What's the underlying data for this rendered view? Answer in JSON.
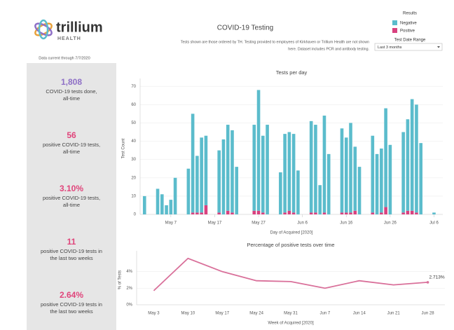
{
  "header": {
    "logo_name": "trillium",
    "logo_sub": "HEALTH",
    "data_current": "Data current through 7/7/2020",
    "title": "COVID-19 Testing",
    "subtitle_lines": [
      "Tests shown are those ordered by TH. Testing provided to employees of Kirkhaven or Trillium Health are not shown",
      "here. Dataset includes PCR and antibody testing."
    ],
    "legend_title": "Results",
    "filter_label": "Test Date Range",
    "filter_value": "Last 3 months"
  },
  "kpis": [
    {
      "value": "1,808",
      "label_lines": [
        "COVID-19 tests done,",
        "all-time"
      ],
      "color": "#8e6fc6"
    },
    {
      "value": "56",
      "label_lines": [
        "positive COVID-19 tests,",
        "all-time"
      ],
      "color": "#e0457b"
    },
    {
      "value": "3.10%",
      "label_lines": [
        "positive COVID-19 tests,",
        "all-time"
      ],
      "color": "#e0457b"
    },
    {
      "value": "11",
      "label_lines": [
        "positive COVID-19 tests in",
        "the last two weeks"
      ],
      "color": "#e0457b"
    },
    {
      "value": "2.64%",
      "label_lines": [
        "positive COVID-19 tests in",
        "the last two weeks"
      ],
      "color": "#e0457b"
    }
  ],
  "chart_data": [
    {
      "type": "stacked_bar",
      "title": "Tests per day",
      "y_label": "Test Count",
      "x_label": "Day of Acquired [2020]",
      "x": [
        "2020-05-01",
        "2020-05-04",
        "2020-05-05",
        "2020-05-06",
        "2020-05-07",
        "2020-05-08",
        "2020-05-11",
        "2020-05-12",
        "2020-05-13",
        "2020-05-14",
        "2020-05-15",
        "2020-05-18",
        "2020-05-19",
        "2020-05-20",
        "2020-05-21",
        "2020-05-22",
        "2020-05-26",
        "2020-05-27",
        "2020-05-28",
        "2020-05-29",
        "2020-06-01",
        "2020-06-02",
        "2020-06-03",
        "2020-06-04",
        "2020-06-05",
        "2020-06-08",
        "2020-06-09",
        "2020-06-10",
        "2020-06-11",
        "2020-06-12",
        "2020-06-15",
        "2020-06-16",
        "2020-06-17",
        "2020-06-18",
        "2020-06-19",
        "2020-06-22",
        "2020-06-23",
        "2020-06-24",
        "2020-06-25",
        "2020-06-26",
        "2020-06-29",
        "2020-06-30",
        "2020-07-01",
        "2020-07-02",
        "2020-07-03",
        "2020-07-06"
      ],
      "series": [
        {
          "name": "Negative",
          "color": "#5bbccc",
          "values": [
            10,
            14,
            11,
            5,
            8,
            20,
            25,
            54,
            31,
            41,
            38,
            34,
            41,
            47,
            45,
            26,
            47,
            66,
            42,
            49,
            23,
            43,
            43,
            43,
            24,
            50,
            48,
            16,
            53,
            33,
            46,
            41,
            49,
            35,
            26,
            42,
            33,
            35,
            54,
            38,
            44,
            50,
            61,
            59,
            39,
            1
          ]
        },
        {
          "name": "Positive",
          "color": "#d9417f",
          "values": [
            0,
            0,
            0,
            0,
            0,
            0,
            0,
            1,
            1,
            1,
            5,
            1,
            0,
            2,
            1,
            0,
            2,
            2,
            1,
            0,
            0,
            1,
            2,
            1,
            0,
            1,
            1,
            0,
            1,
            0,
            1,
            1,
            1,
            2,
            0,
            1,
            0,
            1,
            4,
            0,
            1,
            2,
            2,
            1,
            0,
            0
          ]
        }
      ],
      "xlim": [
        "2020-04-30",
        "2020-07-08"
      ],
      "xticks": [
        {
          "value": "2020-05-07",
          "label": "May 7"
        },
        {
          "value": "2020-05-17",
          "label": "May 17"
        },
        {
          "value": "2020-05-27",
          "label": "May 27"
        },
        {
          "value": "2020-06-06",
          "label": "Jun 6"
        },
        {
          "value": "2020-06-16",
          "label": "Jun 16"
        },
        {
          "value": "2020-06-26",
          "label": "Jun 26"
        },
        {
          "value": "2020-07-06",
          "label": "Jul 6"
        }
      ],
      "ylim": [
        0,
        72
      ],
      "yticks": [
        0,
        10,
        20,
        30,
        40,
        50,
        60,
        70
      ],
      "grid": true
    },
    {
      "type": "line",
      "title": "Percentage of positive tests over time",
      "y_label": "% of Tests",
      "x_label": "Week of Acquired [2020]",
      "categories": [
        "May 3",
        "May 10",
        "May 17",
        "May 24",
        "May 31",
        "Jun 7",
        "Jun 14",
        "Jun 21",
        "Jun 28"
      ],
      "values": [
        1.7,
        5.6,
        4.0,
        2.9,
        2.8,
        2.0,
        2.9,
        2.4,
        2.713
      ],
      "color": "#d9709a",
      "value_labels": [
        null,
        null,
        null,
        null,
        null,
        null,
        null,
        null,
        "2.713%"
      ],
      "ylim": [
        0,
        6
      ],
      "yticks": [
        {
          "value": 0,
          "label": "0%"
        },
        {
          "value": 2,
          "label": "2%"
        },
        {
          "value": 4,
          "label": "4%"
        }
      ],
      "grid": true
    }
  ]
}
